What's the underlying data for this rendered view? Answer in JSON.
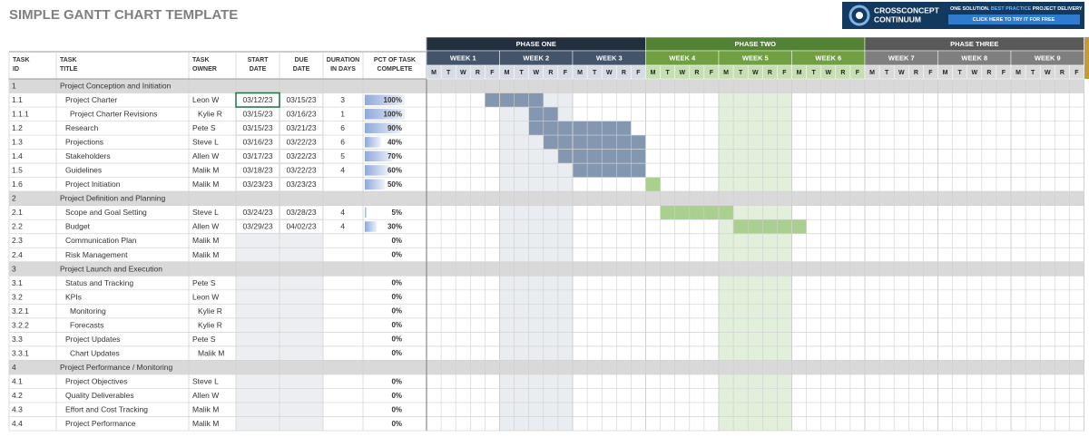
{
  "header": {
    "title": "SIMPLE GANTT CHART TEMPLATE",
    "logo": {
      "brand1": "CROSSCONCEPT",
      "brand2": "CONTINUUM",
      "tag1": "ONE SOLUTION.",
      "tag2": "BEST PRACTICE",
      "tag3": "PROJECT DELIVERY",
      "button": "CLICK HERE TO TRY IT FOR FREE"
    }
  },
  "table": {
    "columns": [
      [
        "TASK",
        "ID"
      ],
      [
        "TASK",
        "TITLE"
      ],
      [
        "TASK",
        "OWNER"
      ],
      [
        "START",
        "DATE"
      ],
      [
        "DUE",
        "DATE"
      ],
      [
        "DURATION",
        "IN DAYS"
      ],
      [
        "PCT OF TASK",
        "COMPLETE"
      ]
    ],
    "phases": [
      {
        "name": "PHASE ONE",
        "weeks": [
          "WEEK 1",
          "WEEK 2",
          "WEEK 3"
        ]
      },
      {
        "name": "PHASE TWO",
        "weeks": [
          "WEEK 4",
          "WEEK 5",
          "WEEK 6"
        ]
      },
      {
        "name": "PHASE THREE",
        "weeks": [
          "WEEK 7",
          "WEEK 8",
          "WEEK 9"
        ]
      }
    ],
    "days": [
      "M",
      "T",
      "W",
      "R",
      "F"
    ],
    "rows": [
      {
        "id": "1",
        "title": "Project Conception and Initiation"
      },
      {
        "id": "1.1",
        "title": "Project Charter",
        "owner": "Leon W",
        "start": "03/12/23",
        "due": "03/15/23",
        "duration": "3",
        "pct": "100%"
      },
      {
        "id": "1.1.1",
        "title": "Project Charter Revisions",
        "owner": "Kylie R",
        "start": "03/15/23",
        "due": "03/16/23",
        "duration": "1",
        "pct": "100%"
      },
      {
        "id": "1.2",
        "title": "Research",
        "owner": "Pete S",
        "start": "03/15/23",
        "due": "03/21/23",
        "duration": "6",
        "pct": "90%"
      },
      {
        "id": "1.3",
        "title": "Projections",
        "owner": "Steve L",
        "start": "03/16/23",
        "due": "03/22/23",
        "duration": "6",
        "pct": "40%"
      },
      {
        "id": "1.4",
        "title": "Stakeholders",
        "owner": "Allen W",
        "start": "03/17/23",
        "due": "03/22/23",
        "duration": "5",
        "pct": "70%"
      },
      {
        "id": "1.5",
        "title": "Guidelines",
        "owner": "Malik M",
        "start": "03/18/23",
        "due": "03/22/23",
        "duration": "4",
        "pct": "60%"
      },
      {
        "id": "1.6",
        "title": "Project Initiation",
        "owner": "Malik M",
        "start": "03/23/23",
        "due": "03/23/23",
        "pct": "50%"
      },
      {
        "id": "2",
        "title": "Project Definition and Planning"
      },
      {
        "id": "2.1",
        "title": "Scope and Goal Setting",
        "owner": "Steve L",
        "start": "03/24/23",
        "due": "03/28/23",
        "duration": "4",
        "pct": "5%"
      },
      {
        "id": "2.2",
        "title": "Budget",
        "owner": "Allen W",
        "start": "03/29/23",
        "due": "04/02/23",
        "duration": "4",
        "pct": "30%"
      },
      {
        "id": "2.3",
        "title": "Communication Plan",
        "owner": "Malik M",
        "pct": "0%"
      },
      {
        "id": "2.4",
        "title": "Risk Management",
        "owner": "Malik M",
        "pct": "0%"
      },
      {
        "id": "3",
        "title": "Project Launch and Execution"
      },
      {
        "id": "3.1",
        "title": "Status and Tracking",
        "owner": "Pete S",
        "pct": "0%"
      },
      {
        "id": "3.2",
        "title": "KPIs",
        "owner": "Leon W",
        "pct": "0%"
      },
      {
        "id": "3.2.1",
        "title": "Monitoring",
        "owner": "Kylie R",
        "pct": "0%"
      },
      {
        "id": "3.2.2",
        "title": "Forecasts",
        "owner": "Kylie R",
        "pct": "0%"
      },
      {
        "id": "3.3",
        "title": "Project Updates",
        "owner": "Pete S",
        "pct": "0%"
      },
      {
        "id": "3.3.1",
        "title": "Chart Updates",
        "owner": "Malik M",
        "pct": "0%"
      },
      {
        "id": "4",
        "title": "Project Performance / Monitoring"
      },
      {
        "id": "4.1",
        "title": "Project Objectives",
        "owner": "Steve L",
        "pct": "0%"
      },
      {
        "id": "4.2",
        "title": "Quality Deliverables",
        "owner": "Allen W",
        "pct": "0%"
      },
      {
        "id": "4.3",
        "title": "Effort and Cost Tracking",
        "owner": "Malik M",
        "pct": "0%"
      },
      {
        "id": "4.4",
        "title": "Project Performance",
        "owner": "Malik M",
        "pct": "0%"
      }
    ]
  }
}
